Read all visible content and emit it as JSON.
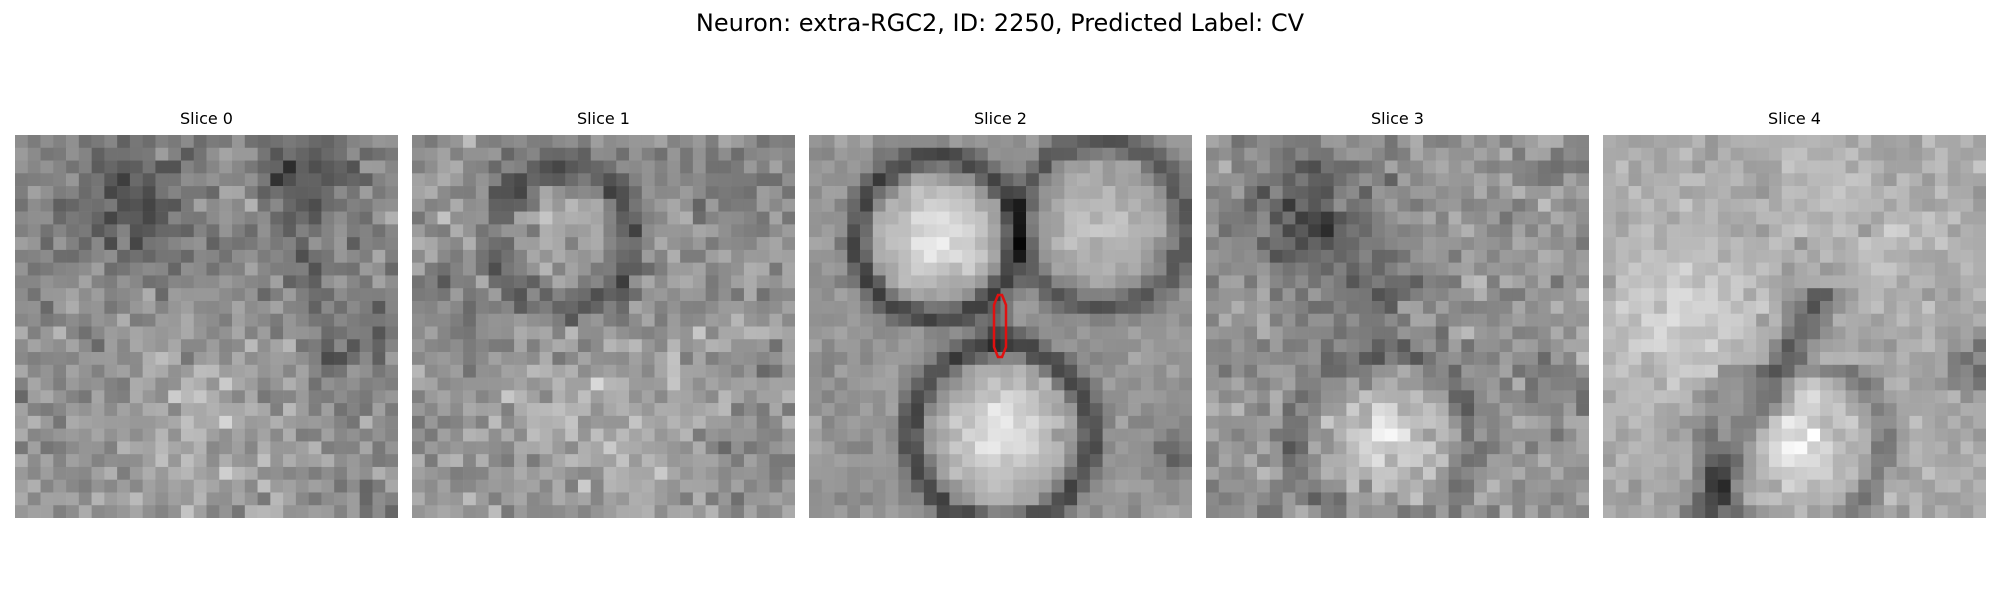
{
  "figure": {
    "title": "Neuron: extra-RGC2, ID: 2250, Predicted Label: CV"
  },
  "panels": [
    {
      "title": "Slice 0",
      "description": "noisy grayscale EM patch, darker upper region"
    },
    {
      "title": "Slice 1",
      "description": "noisy grayscale EM patch with faint ring"
    },
    {
      "title": "Slice 2",
      "description": "two bright round vesicle-like blobs with dark membranes; red outlined synapse marker between them"
    },
    {
      "title": "Slice 3",
      "description": "noisy patch, dark upper left, bright blob lower middle"
    },
    {
      "title": "Slice 4",
      "description": "bright diffuse texture, bright blob lower middle"
    }
  ],
  "colors": {
    "marker": "#e01010",
    "background": "#ffffff"
  }
}
